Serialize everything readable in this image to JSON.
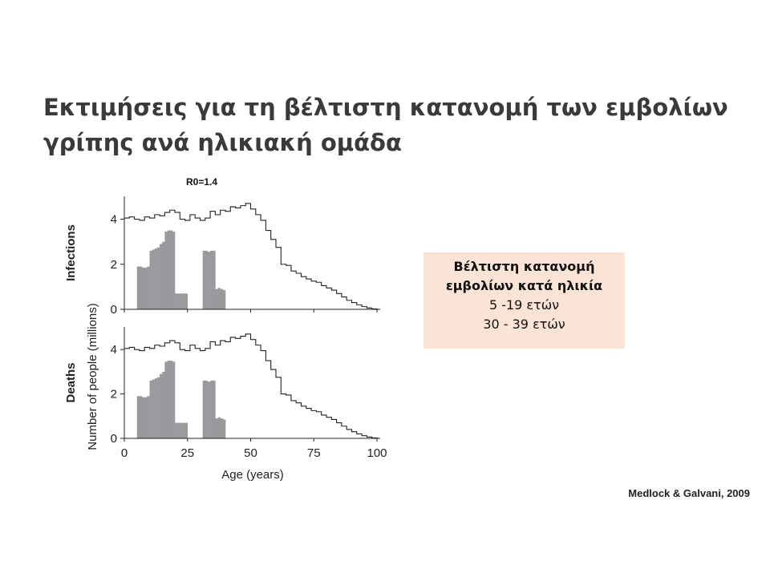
{
  "slide": {
    "title_line1": "Εκτιμήσεις για τη βέλτιστη κατανομή των εμβολίων",
    "title_line2": "γρίπης ανά ηλικιακή ομάδα",
    "r0_label": "R0=1.4",
    "callout": {
      "line1": "Βέλτιστη κατανομή",
      "line2": "εμβολίων κατά ηλικία",
      "line3": "5 -19 ετών",
      "line4": "30 - 39 ετών"
    },
    "citation": "Medlock & Galvani, 2009"
  },
  "colors": {
    "bar": "#9a9a9e",
    "callout_bg": "#fbe3d6",
    "line": "#222222"
  },
  "chart_data": [
    {
      "type": "area",
      "panel_label": "Infections",
      "ylabel": "Number of people (millions)",
      "xlim": [
        0,
        100
      ],
      "ylim": [
        0,
        4.8
      ],
      "yticks": [
        0,
        2,
        4
      ],
      "xticks": [
        0,
        25,
        50,
        75,
        100
      ],
      "series": [
        {
          "kind": "population-step",
          "x": [
            0,
            2,
            4,
            6,
            8,
            10,
            12,
            14,
            16,
            18,
            20,
            22,
            24,
            26,
            28,
            30,
            32,
            34,
            36,
            38,
            40,
            42,
            44,
            46,
            48,
            50,
            52,
            54,
            56,
            58,
            60,
            62,
            64,
            66,
            68,
            70,
            72,
            74,
            76,
            78,
            80,
            82,
            84,
            86,
            88,
            90,
            92,
            94,
            96,
            98,
            100
          ],
          "values": [
            4.05,
            4.1,
            4.0,
            3.95,
            4.1,
            4.05,
            4.2,
            4.15,
            4.3,
            4.4,
            4.3,
            4.0,
            3.95,
            4.2,
            4.05,
            3.95,
            4.05,
            4.35,
            4.2,
            4.4,
            4.35,
            4.55,
            4.5,
            4.6,
            4.7,
            4.45,
            4.2,
            3.95,
            3.5,
            3.1,
            2.75,
            2.0,
            1.95,
            1.7,
            1.6,
            1.45,
            1.35,
            1.25,
            1.2,
            1.05,
            0.95,
            0.85,
            0.7,
            0.55,
            0.4,
            0.3,
            0.2,
            0.12,
            0.06,
            0.02,
            0.0
          ]
        },
        {
          "kind": "vaccinated-bars",
          "x": [
            5,
            6,
            7,
            8,
            9,
            10,
            11,
            12,
            13,
            14,
            15,
            16,
            17,
            18,
            19,
            20,
            21,
            22,
            23,
            24,
            25,
            26,
            27,
            28,
            29,
            30,
            31,
            32,
            33,
            34,
            35,
            36,
            37,
            38,
            39,
            40
          ],
          "values": [
            1.9,
            1.9,
            1.85,
            1.85,
            1.9,
            2.6,
            2.65,
            2.7,
            2.75,
            2.9,
            3.0,
            3.45,
            3.5,
            3.5,
            3.45,
            0.7,
            0.7,
            0.7,
            0.7,
            0.7,
            0.0,
            0.0,
            0.0,
            0.0,
            0.0,
            0.0,
            2.6,
            2.6,
            2.55,
            2.6,
            2.6,
            0.9,
            0.95,
            0.9,
            0.85,
            0.0
          ]
        }
      ]
    },
    {
      "type": "area",
      "panel_label": "Deaths",
      "ylabel": "Number of people (millions)",
      "xlabel": "Age (years)",
      "xlim": [
        0,
        100
      ],
      "ylim": [
        0,
        4.8
      ],
      "yticks": [
        0,
        2,
        4
      ],
      "xticks": [
        0,
        25,
        50,
        75,
        100
      ],
      "series": [
        {
          "kind": "population-step",
          "x": [
            0,
            2,
            4,
            6,
            8,
            10,
            12,
            14,
            16,
            18,
            20,
            22,
            24,
            26,
            28,
            30,
            32,
            34,
            36,
            38,
            40,
            42,
            44,
            46,
            48,
            50,
            52,
            54,
            56,
            58,
            60,
            62,
            64,
            66,
            68,
            70,
            72,
            74,
            76,
            78,
            80,
            82,
            84,
            86,
            88,
            90,
            92,
            94,
            96,
            98,
            100
          ],
          "values": [
            4.05,
            4.1,
            4.0,
            3.95,
            4.1,
            4.05,
            4.2,
            4.15,
            4.3,
            4.4,
            4.3,
            4.0,
            3.95,
            4.2,
            4.05,
            3.95,
            4.05,
            4.35,
            4.2,
            4.4,
            4.35,
            4.55,
            4.5,
            4.6,
            4.7,
            4.45,
            4.2,
            3.95,
            3.5,
            3.1,
            2.75,
            2.0,
            1.95,
            1.7,
            1.6,
            1.45,
            1.35,
            1.25,
            1.2,
            1.05,
            0.95,
            0.85,
            0.7,
            0.55,
            0.4,
            0.3,
            0.2,
            0.12,
            0.06,
            0.02,
            0.0
          ]
        },
        {
          "kind": "vaccinated-bars",
          "x": [
            5,
            6,
            7,
            8,
            9,
            10,
            11,
            12,
            13,
            14,
            15,
            16,
            17,
            18,
            19,
            20,
            21,
            22,
            23,
            24,
            25,
            26,
            27,
            28,
            29,
            30,
            31,
            32,
            33,
            34,
            35,
            36,
            37,
            38,
            39,
            40
          ],
          "values": [
            1.9,
            1.9,
            1.85,
            1.85,
            1.9,
            2.6,
            2.65,
            2.7,
            2.75,
            2.9,
            3.0,
            3.45,
            3.5,
            3.5,
            3.45,
            0.7,
            0.7,
            0.7,
            0.7,
            0.7,
            0.0,
            0.0,
            0.0,
            0.0,
            0.0,
            0.0,
            2.6,
            2.6,
            2.55,
            2.6,
            2.6,
            0.9,
            0.95,
            0.9,
            0.85,
            0.0
          ]
        }
      ]
    }
  ]
}
